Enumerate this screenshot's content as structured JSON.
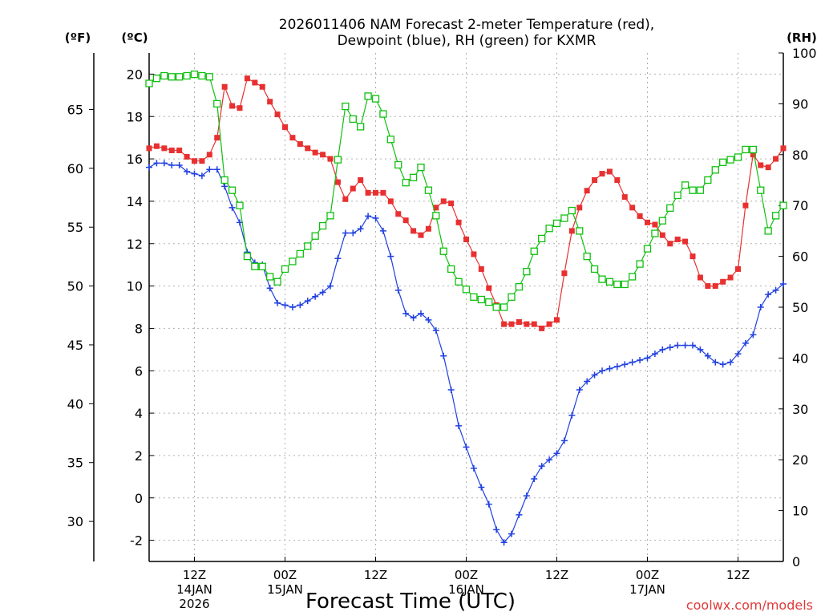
{
  "chart_data": {
    "type": "line",
    "title_line1": "2026011406 NAM Forecast 2-meter Temperature (red),",
    "title_line2": "Dewpoint (blue), RH (green) for KXMR",
    "xlabel": "Forecast Time (UTC)",
    "credit": "coolwx.com/models",
    "units": {
      "fahrenheit": "(ºF)",
      "celsius": "(ºC)",
      "rh": "(RH)"
    },
    "x_unit": "hours from 2026-01-14 06Z",
    "x_range": [
      0,
      84
    ],
    "celsius_range": [
      -3,
      21
    ],
    "rh_range": [
      0,
      100
    ],
    "celsius_ticks": [
      "-2",
      "0",
      "2",
      "4",
      "6",
      "8",
      "10",
      "12",
      "14",
      "16",
      "18",
      "20"
    ],
    "celsius_tick_values": [
      -2,
      0,
      2,
      4,
      6,
      8,
      10,
      12,
      14,
      16,
      18,
      20
    ],
    "fahrenheit_ticks": [
      "30",
      "35",
      "40",
      "45",
      "50",
      "55",
      "60",
      "65"
    ],
    "fahrenheit_tick_values": [
      30,
      35,
      40,
      45,
      50,
      55,
      60,
      65
    ],
    "rh_ticks": [
      "0",
      "10",
      "20",
      "30",
      "40",
      "50",
      "60",
      "70",
      "80",
      "90",
      "100"
    ],
    "rh_tick_values": [
      0,
      10,
      20,
      30,
      40,
      50,
      60,
      70,
      80,
      90,
      100
    ],
    "x_tick_hours": [
      6,
      18,
      30,
      42,
      54,
      66,
      78
    ],
    "x_ticks": [
      {
        "hour": 6,
        "lines": [
          "12Z",
          "14JAN",
          "2026"
        ]
      },
      {
        "hour": 18,
        "lines": [
          "00Z",
          "15JAN"
        ]
      },
      {
        "hour": 30,
        "lines": [
          "12Z"
        ]
      },
      {
        "hour": 42,
        "lines": [
          "00Z",
          "16JAN"
        ]
      },
      {
        "hour": 54,
        "lines": [
          "12Z"
        ]
      },
      {
        "hour": 66,
        "lines": [
          "00Z",
          "17JAN"
        ]
      },
      {
        "hour": 78,
        "lines": [
          "12Z"
        ]
      }
    ],
    "grid": true,
    "hours": [
      0,
      1,
      2,
      3,
      4,
      5,
      6,
      7,
      8,
      9,
      10,
      11,
      12,
      13,
      14,
      15,
      16,
      17,
      18,
      19,
      20,
      21,
      22,
      23,
      24,
      25,
      26,
      27,
      28,
      29,
      30,
      31,
      32,
      33,
      34,
      35,
      36,
      37,
      38,
      39,
      40,
      41,
      42,
      43,
      44,
      45,
      46,
      47,
      48,
      49,
      50,
      51,
      52,
      53,
      54,
      55,
      56,
      57,
      58,
      59,
      60,
      61,
      62,
      63,
      64,
      65,
      66,
      67,
      68,
      69,
      70,
      71,
      72,
      73,
      74,
      75,
      76,
      77,
      78,
      79,
      80,
      81,
      82,
      83,
      84
    ],
    "series": [
      {
        "name": "Temperature",
        "unit": "C",
        "color": "#e83030",
        "marker": "filled-square",
        "values": [
          16.5,
          16.6,
          16.5,
          16.4,
          16.4,
          16.1,
          15.9,
          15.9,
          16.2,
          17.0,
          19.4,
          18.5,
          18.4,
          19.8,
          19.6,
          19.4,
          18.7,
          18.1,
          17.5,
          17.0,
          16.7,
          16.5,
          16.3,
          16.2,
          16.0,
          14.9,
          14.1,
          14.6,
          15.0,
          14.4,
          14.4,
          14.4,
          14.0,
          13.4,
          13.1,
          12.6,
          12.4,
          12.7,
          13.7,
          14.0,
          13.9,
          13.0,
          12.2,
          11.5,
          10.8,
          9.9,
          9.1,
          8.2,
          8.2,
          8.3,
          8.2,
          8.2,
          8.0,
          8.2,
          8.4,
          10.6,
          12.6,
          13.7,
          14.5,
          15.0,
          15.3,
          15.4,
          15.0,
          14.2,
          13.7,
          13.3,
          13.0,
          12.9,
          12.4,
          12.0,
          12.2,
          12.1,
          11.4,
          10.4,
          10.0,
          10.0,
          10.2,
          10.4,
          10.8,
          13.8,
          16.2,
          15.7,
          15.6,
          16.0,
          16.5
        ]
      },
      {
        "name": "Dewpoint",
        "unit": "C",
        "color": "#2040e0",
        "marker": "plus",
        "values": [
          15.6,
          15.8,
          15.8,
          15.7,
          15.7,
          15.4,
          15.3,
          15.2,
          15.5,
          15.5,
          14.7,
          13.7,
          13.0,
          11.6,
          11.1,
          11.0,
          9.9,
          9.2,
          9.1,
          9.0,
          9.1,
          9.3,
          9.5,
          9.7,
          10.0,
          11.3,
          12.5,
          12.5,
          12.7,
          13.3,
          13.2,
          12.6,
          11.4,
          9.8,
          8.7,
          8.5,
          8.7,
          8.4,
          7.9,
          6.7,
          5.1,
          3.4,
          2.4,
          1.4,
          0.5,
          -0.3,
          -1.5,
          -2.1,
          -1.7,
          -0.8,
          0.1,
          0.9,
          1.5,
          1.8,
          2.1,
          2.7,
          3.9,
          5.1,
          5.5,
          5.8,
          6.0,
          6.1,
          6.2,
          6.3,
          6.4,
          6.5,
          6.6,
          6.8,
          7.0,
          7.1,
          7.2,
          7.2,
          7.2,
          7.0,
          6.7,
          6.4,
          6.3,
          6.4,
          6.8,
          7.3,
          7.7,
          9.0,
          9.6,
          9.8,
          10.1
        ]
      },
      {
        "name": "RH",
        "unit": "%",
        "color": "#10c010",
        "marker": "open-square",
        "values": [
          94,
          95,
          95.5,
          95.3,
          95.3,
          95.5,
          95.8,
          95.5,
          95.3,
          90,
          75,
          73,
          70,
          60,
          58,
          58,
          56,
          55,
          57.5,
          59,
          60.5,
          62,
          64,
          66,
          68,
          79,
          89.5,
          87,
          85.5,
          91.5,
          91,
          88,
          83,
          78,
          74.5,
          75.5,
          77.5,
          73,
          68,
          61,
          57.5,
          55,
          53.5,
          52,
          51.5,
          51,
          50,
          50,
          52,
          54,
          57,
          61,
          63.5,
          65.5,
          66.5,
          67.5,
          69,
          65,
          60,
          57.5,
          55.5,
          55,
          54.5,
          54.5,
          56,
          58.5,
          61.5,
          64.5,
          67,
          69.5,
          72,
          74,
          73,
          73,
          75,
          77,
          78.5,
          79,
          79.5,
          81,
          81,
          73,
          65,
          68,
          70
        ]
      }
    ]
  }
}
